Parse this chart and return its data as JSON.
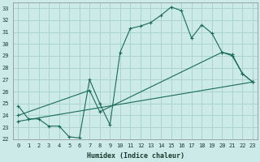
{
  "xlabel": "Humidex (Indice chaleur)",
  "bg_color": "#cceae7",
  "grid_color": "#aad4d0",
  "line_color": "#1a6b5a",
  "xlim": [
    -0.5,
    23.5
  ],
  "ylim": [
    22,
    33.5
  ],
  "xticks": [
    0,
    1,
    2,
    3,
    4,
    5,
    6,
    7,
    8,
    9,
    10,
    11,
    12,
    13,
    14,
    15,
    16,
    17,
    18,
    19,
    20,
    21,
    22,
    23
  ],
  "yticks": [
    22,
    23,
    24,
    25,
    26,
    27,
    28,
    29,
    30,
    31,
    32,
    33
  ],
  "line1_x": [
    0,
    1,
    2,
    3,
    4,
    5,
    6,
    7,
    8,
    9,
    10,
    11,
    12,
    13,
    14,
    15,
    16,
    17,
    18,
    19,
    20,
    21,
    22,
    23
  ],
  "line1_y": [
    24.8,
    23.7,
    23.7,
    23.1,
    23.1,
    22.2,
    22.1,
    27.0,
    25.0,
    23.2,
    29.3,
    31.3,
    31.5,
    31.8,
    32.4,
    33.1,
    32.8,
    30.5,
    31.6,
    30.9,
    29.3,
    29.0,
    27.5,
    26.8
  ],
  "line2_x": [
    0,
    7,
    8,
    20,
    21,
    22,
    23
  ],
  "line2_y": [
    24.0,
    26.1,
    24.3,
    29.3,
    29.1,
    27.5,
    26.8
  ],
  "line3_x": [
    0,
    23
  ],
  "line3_y": [
    23.5,
    26.8
  ]
}
